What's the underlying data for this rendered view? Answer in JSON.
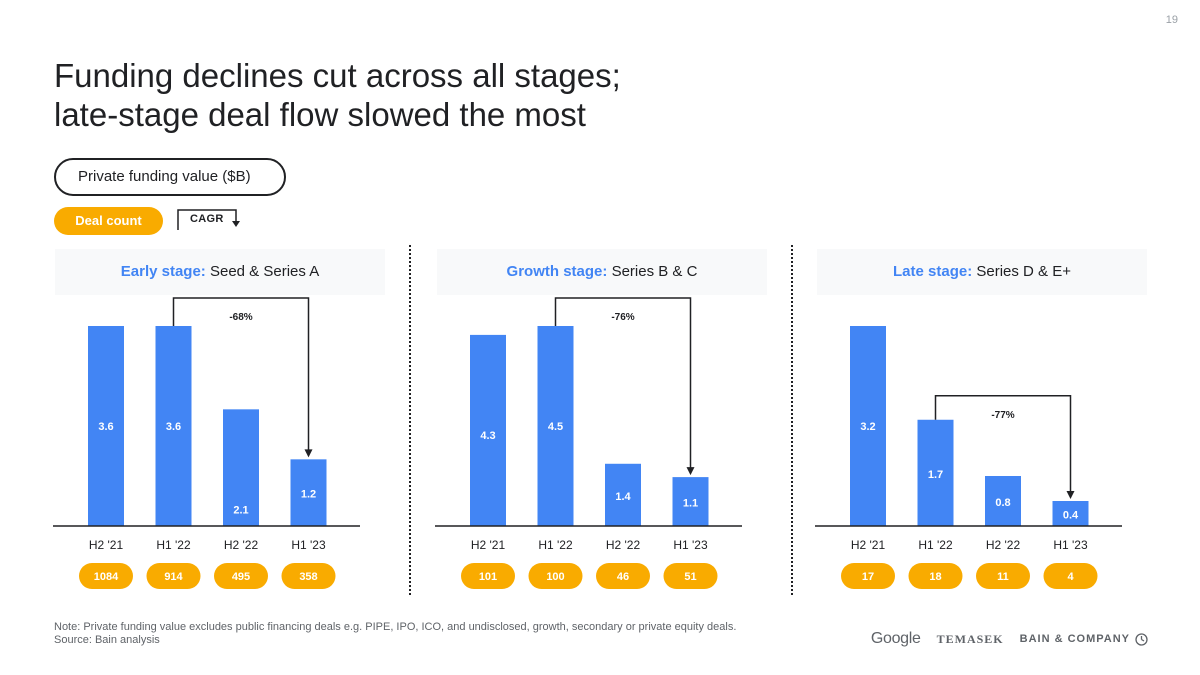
{
  "page_number": "19",
  "title_line1": "Funding declines cut across all stages;",
  "title_line2": "late-stage deal flow slowed the most",
  "legend": {
    "funding_label": "Private funding value ($B)",
    "deal_count_label": "Deal count",
    "cagr_label": "CAGR"
  },
  "colors": {
    "bar": "#4285f4",
    "badge": "#f9ab00",
    "header_accent": "#4285f4"
  },
  "chart_data": [
    {
      "type": "bar",
      "stage": "Early stage:",
      "rounds": "Seed & Series A",
      "categories": [
        "H2 '21",
        "H1 '22",
        "H2 '22",
        "H1 '23"
      ],
      "values": [
        3.6,
        3.6,
        2.1,
        1.2
      ],
      "labels": [
        "3.6",
        "3.6",
        "2.1",
        "1.2"
      ],
      "deal_counts": [
        "1084",
        "914",
        "495",
        "358"
      ],
      "cagr": {
        "label": "-68%",
        "from_index": 1,
        "to_index": 3
      },
      "ylabel": "Private funding value ($B)",
      "ylim": [
        0,
        3.6
      ]
    },
    {
      "type": "bar",
      "stage": "Growth stage:",
      "rounds": "Series B & C",
      "categories": [
        "H2 '21",
        "H1 '22",
        "H2 '22",
        "H1 '23"
      ],
      "values": [
        4.3,
        4.5,
        1.4,
        1.1
      ],
      "labels": [
        "4.3",
        "4.5",
        "1.4",
        "1.1"
      ],
      "deal_counts": [
        "101",
        "100",
        "46",
        "51"
      ],
      "cagr": {
        "label": "-76%",
        "from_index": 1,
        "to_index": 3
      },
      "ylabel": "Private funding value ($B)",
      "ylim": [
        0,
        4.5
      ]
    },
    {
      "type": "bar",
      "stage": "Late stage:",
      "rounds": "Series D & E+",
      "categories": [
        "H2 '21",
        "H1 '22",
        "H2 '22",
        "H1 '23"
      ],
      "values": [
        3.2,
        1.7,
        0.8,
        0.4
      ],
      "labels": [
        "3.2",
        "1.7",
        "0.8",
        "0.4"
      ],
      "deal_counts": [
        "17",
        "18",
        "11",
        "4"
      ],
      "cagr": {
        "label": "-77%",
        "from_index": 1,
        "to_index": 3
      },
      "ylabel": "Private funding value ($B)",
      "ylim": [
        0,
        3.2
      ]
    }
  ],
  "footer": {
    "note": "Note: Private funding value excludes public financing deals e.g. PIPE, IPO, ICO, and undisclosed, growth, secondary or private equity deals.",
    "source": "Source: Bain analysis"
  },
  "logos": {
    "google": "Google",
    "temasek": "TEMASEK",
    "bain": "BAIN & COMPANY"
  }
}
